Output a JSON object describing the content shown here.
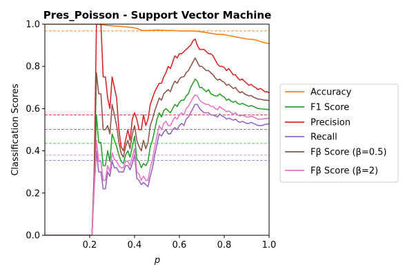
{
  "chart_data": {
    "type": "line",
    "title": "Pres_Poisson - Support Vector Machine",
    "xlabel": "p",
    "ylabel": "Classification Scores",
    "xlim": [
      0.0,
      1.0
    ],
    "ylim": [
      0.0,
      1.0
    ],
    "xticks": [
      0.2,
      0.4,
      0.6,
      0.8,
      1.0
    ],
    "xtick_labels": [
      "0.2",
      "0.4",
      "0.6",
      "0.8",
      "1.0"
    ],
    "yticks": [
      0.0,
      0.2,
      0.4,
      0.6,
      0.8,
      1.0
    ],
    "ytick_labels": [
      "0.0",
      "0.2",
      "0.4",
      "0.6",
      "0.8",
      "1.0"
    ],
    "grid": false,
    "legend_position": "right-outside",
    "x": [
      0.0,
      0.1,
      0.2,
      0.21,
      0.22,
      0.23,
      0.24,
      0.25,
      0.26,
      0.27,
      0.28,
      0.29,
      0.3,
      0.31,
      0.32,
      0.33,
      0.34,
      0.35,
      0.36,
      0.37,
      0.38,
      0.39,
      0.4,
      0.41,
      0.42,
      0.43,
      0.44,
      0.45,
      0.46,
      0.47,
      0.48,
      0.49,
      0.5,
      0.51,
      0.52,
      0.53,
      0.54,
      0.55,
      0.56,
      0.57,
      0.58,
      0.59,
      0.6,
      0.61,
      0.62,
      0.63,
      0.64,
      0.65,
      0.66,
      0.67,
      0.68,
      0.69,
      0.7,
      0.71,
      0.72,
      0.73,
      0.74,
      0.75,
      0.76,
      0.77,
      0.78,
      0.79,
      0.8,
      0.81,
      0.82,
      0.83,
      0.84,
      0.85,
      0.86,
      0.87,
      0.88,
      0.89,
      0.9,
      0.91,
      0.92,
      0.93,
      0.94,
      0.95,
      0.96,
      0.97,
      0.98,
      0.99,
      1.0
    ],
    "series": [
      {
        "name": "Accuracy",
        "color": "#ff7f0e",
        "values": [
          1.0,
          1.0,
          1.0,
          1.0,
          1.0,
          1.0,
          1.0,
          0.998,
          0.996,
          0.995,
          0.994,
          0.993,
          0.992,
          0.991,
          0.99,
          0.99,
          0.989,
          0.988,
          0.987,
          0.986,
          0.985,
          0.984,
          0.982,
          0.98,
          0.975,
          0.972,
          0.97,
          0.97,
          0.97,
          0.971,
          0.971,
          0.972,
          0.972,
          0.972,
          0.971,
          0.971,
          0.97,
          0.97,
          0.97,
          0.97,
          0.969,
          0.969,
          0.968,
          0.968,
          0.968,
          0.968,
          0.968,
          0.968,
          0.968,
          0.967,
          0.966,
          0.965,
          0.963,
          0.962,
          0.96,
          0.958,
          0.957,
          0.955,
          0.953,
          0.952,
          0.952,
          0.952,
          0.95,
          0.948,
          0.946,
          0.944,
          0.942,
          0.94,
          0.938,
          0.936,
          0.934,
          0.932,
          0.93,
          0.929,
          0.928,
          0.927,
          0.925,
          0.922,
          0.918,
          0.915,
          0.912,
          0.91,
          0.909
        ]
      },
      {
        "name": "F1 Score",
        "color": "#2ca02c",
        "values": [
          0.0,
          0.0,
          0.0,
          0.0,
          0.25,
          0.57,
          0.44,
          0.44,
          0.33,
          0.33,
          0.4,
          0.35,
          0.48,
          0.45,
          0.42,
          0.38,
          0.35,
          0.34,
          0.38,
          0.4,
          0.37,
          0.42,
          0.47,
          0.36,
          0.35,
          0.32,
          0.34,
          0.33,
          0.35,
          0.42,
          0.45,
          0.5,
          0.55,
          0.58,
          0.56,
          0.59,
          0.6,
          0.59,
          0.58,
          0.6,
          0.62,
          0.61,
          0.63,
          0.64,
          0.64,
          0.66,
          0.67,
          0.7,
          0.72,
          0.74,
          0.73,
          0.7,
          0.7,
          0.69,
          0.68,
          0.69,
          0.67,
          0.665,
          0.66,
          0.66,
          0.67,
          0.66,
          0.655,
          0.64,
          0.645,
          0.635,
          0.63,
          0.635,
          0.625,
          0.62,
          0.625,
          0.62,
          0.615,
          0.61,
          0.615,
          0.61,
          0.605,
          0.6,
          0.6,
          0.598,
          0.597,
          0.596,
          0.595
        ]
      },
      {
        "name": "Precision",
        "color": "#d62728",
        "values": [
          0.0,
          0.0,
          0.0,
          0.0,
          0.3,
          1.0,
          1.0,
          1.0,
          0.75,
          0.75,
          0.65,
          0.6,
          0.75,
          0.7,
          0.65,
          0.5,
          0.42,
          0.4,
          0.45,
          0.5,
          0.45,
          0.55,
          0.58,
          0.55,
          0.5,
          0.5,
          0.57,
          0.52,
          0.55,
          0.62,
          0.65,
          0.68,
          0.7,
          0.72,
          0.72,
          0.75,
          0.77,
          0.8,
          0.79,
          0.82,
          0.85,
          0.84,
          0.86,
          0.86,
          0.87,
          0.88,
          0.89,
          0.9,
          0.92,
          0.93,
          0.9,
          0.88,
          0.88,
          0.88,
          0.87,
          0.86,
          0.86,
          0.85,
          0.83,
          0.81,
          0.8,
          0.8,
          0.795,
          0.78,
          0.79,
          0.775,
          0.76,
          0.76,
          0.745,
          0.735,
          0.74,
          0.73,
          0.72,
          0.71,
          0.715,
          0.705,
          0.7,
          0.69,
          0.695,
          0.69,
          0.68,
          0.68,
          0.675
        ]
      },
      {
        "name": "Recall",
        "color": "#9467bd",
        "values": [
          0.0,
          0.0,
          0.0,
          0.0,
          0.22,
          0.4,
          0.3,
          0.3,
          0.22,
          0.22,
          0.3,
          0.28,
          0.35,
          0.32,
          0.32,
          0.3,
          0.3,
          0.3,
          0.33,
          0.33,
          0.31,
          0.34,
          0.38,
          0.27,
          0.26,
          0.24,
          0.25,
          0.24,
          0.23,
          0.28,
          0.32,
          0.38,
          0.43,
          0.48,
          0.47,
          0.49,
          0.5,
          0.48,
          0.48,
          0.5,
          0.51,
          0.5,
          0.52,
          0.53,
          0.52,
          0.55,
          0.56,
          0.58,
          0.6,
          0.62,
          0.62,
          0.6,
          0.59,
          0.58,
          0.58,
          0.58,
          0.57,
          0.57,
          0.565,
          0.56,
          0.575,
          0.565,
          0.56,
          0.55,
          0.555,
          0.55,
          0.545,
          0.55,
          0.54,
          0.535,
          0.54,
          0.535,
          0.53,
          0.53,
          0.535,
          0.53,
          0.525,
          0.52,
          0.52,
          0.52,
          0.525,
          0.525,
          0.53
        ]
      },
      {
        "name": "Fβ Score (β=0.5)",
        "color": "#8c564b",
        "values": [
          0.0,
          0.0,
          0.0,
          0.0,
          0.28,
          0.77,
          0.67,
          0.67,
          0.5,
          0.5,
          0.52,
          0.48,
          0.62,
          0.57,
          0.52,
          0.44,
          0.39,
          0.37,
          0.42,
          0.45,
          0.41,
          0.48,
          0.52,
          0.45,
          0.42,
          0.4,
          0.45,
          0.41,
          0.44,
          0.52,
          0.55,
          0.59,
          0.62,
          0.65,
          0.64,
          0.67,
          0.68,
          0.69,
          0.68,
          0.71,
          0.73,
          0.72,
          0.74,
          0.75,
          0.75,
          0.77,
          0.78,
          0.8,
          0.82,
          0.84,
          0.82,
          0.8,
          0.8,
          0.79,
          0.78,
          0.78,
          0.77,
          0.76,
          0.745,
          0.735,
          0.74,
          0.73,
          0.725,
          0.71,
          0.715,
          0.705,
          0.695,
          0.7,
          0.685,
          0.675,
          0.68,
          0.67,
          0.665,
          0.66,
          0.662,
          0.655,
          0.65,
          0.645,
          0.645,
          0.642,
          0.64,
          0.64,
          0.638
        ]
      },
      {
        "name": "Fβ Score (β=2)",
        "color": "#e377c2",
        "values": [
          0.0,
          0.0,
          0.0,
          0.0,
          0.23,
          0.45,
          0.35,
          0.35,
          0.26,
          0.26,
          0.33,
          0.3,
          0.39,
          0.36,
          0.35,
          0.33,
          0.32,
          0.32,
          0.35,
          0.35,
          0.33,
          0.37,
          0.41,
          0.3,
          0.29,
          0.26,
          0.28,
          0.26,
          0.26,
          0.32,
          0.36,
          0.42,
          0.47,
          0.52,
          0.5,
          0.53,
          0.54,
          0.52,
          0.52,
          0.54,
          0.56,
          0.55,
          0.57,
          0.58,
          0.57,
          0.6,
          0.61,
          0.63,
          0.65,
          0.665,
          0.66,
          0.64,
          0.63,
          0.625,
          0.62,
          0.62,
          0.61,
          0.61,
          0.6,
          0.595,
          0.61,
          0.6,
          0.595,
          0.585,
          0.59,
          0.58,
          0.575,
          0.58,
          0.57,
          0.565,
          0.57,
          0.565,
          0.56,
          0.56,
          0.565,
          0.56,
          0.555,
          0.55,
          0.55,
          0.55,
          0.553,
          0.553,
          0.555
        ]
      }
    ],
    "reference_lines": [
      {
        "y": 0.968,
        "color": "#ff7f0e"
      },
      {
        "y": 0.57,
        "color": "#d62728"
      },
      {
        "y": 0.502,
        "color": "#8c564b"
      },
      {
        "y": 0.435,
        "color": "#2ca02c"
      },
      {
        "y": 0.38,
        "color": "#e377c2"
      },
      {
        "y": 0.355,
        "color": "#9467bd"
      }
    ]
  }
}
